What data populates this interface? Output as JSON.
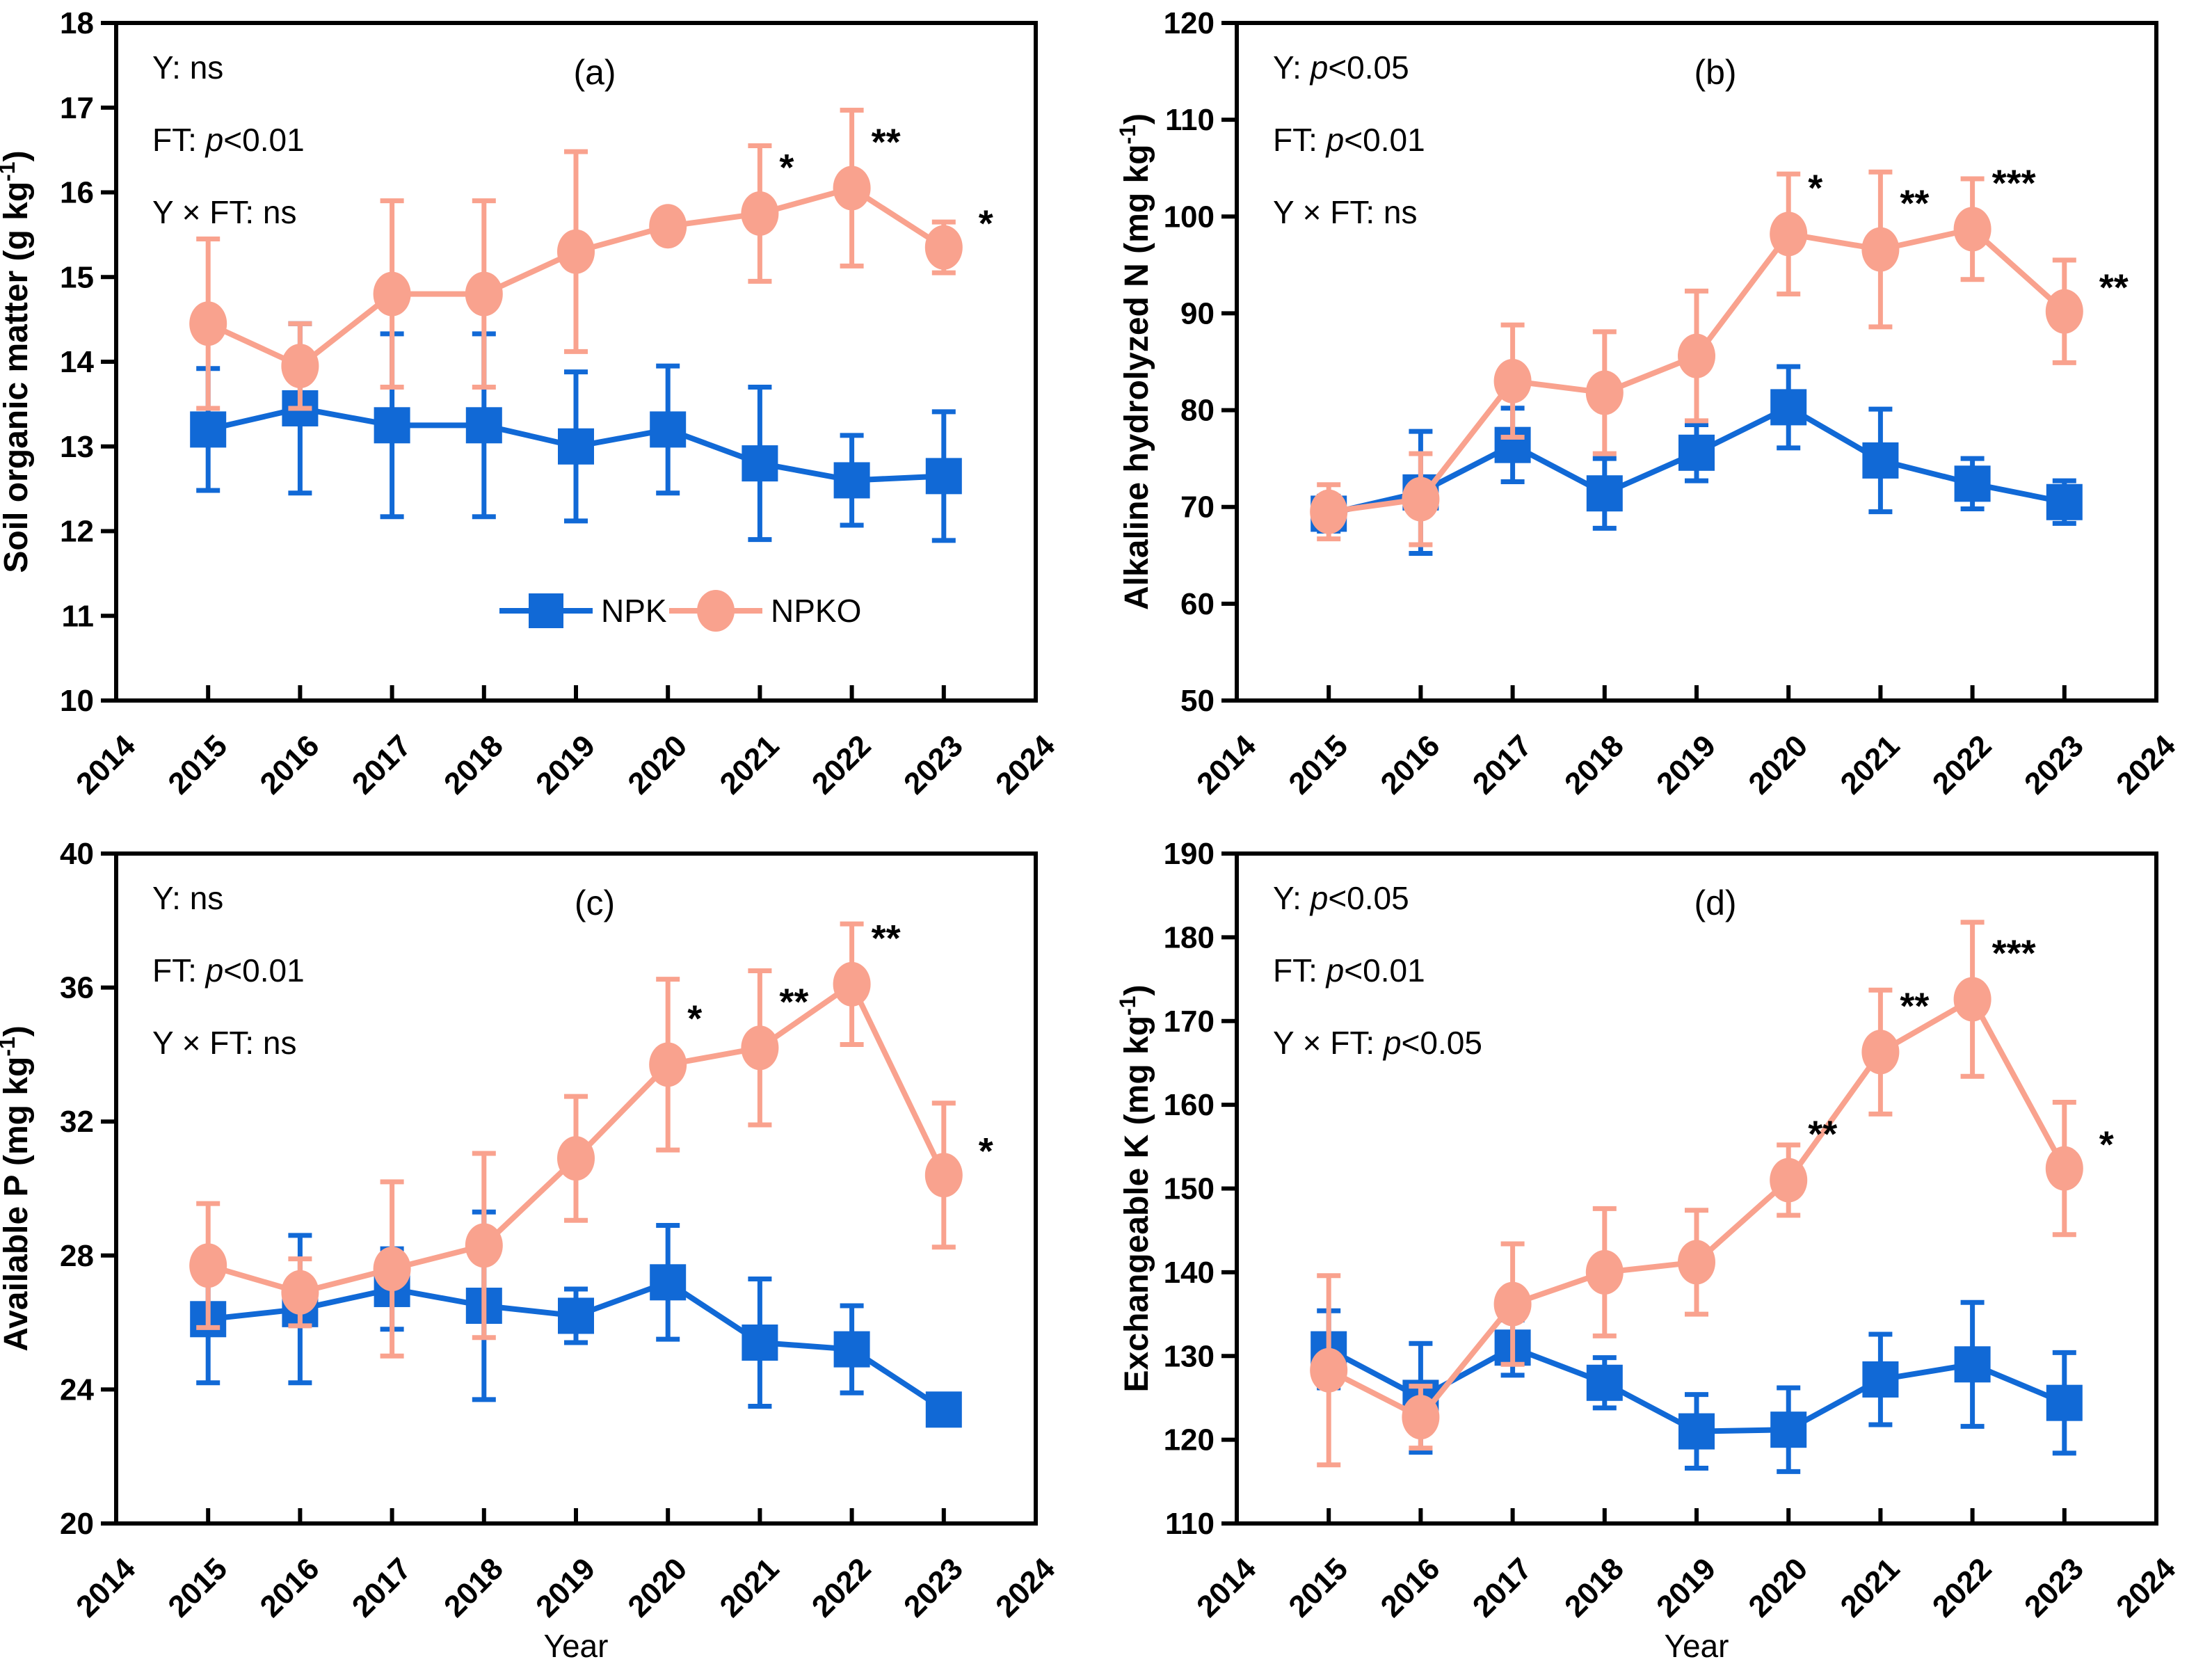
{
  "figure": {
    "xlabel": "Year",
    "xlim": [
      2014,
      2024
    ],
    "x_tick_labels": [
      "2014",
      "2015",
      "2016",
      "2017",
      "2018",
      "2019",
      "2020",
      "2021",
      "2022",
      "2023",
      "2024"
    ],
    "colors": {
      "npk": "#1169d6",
      "npko": "#f9a28e",
      "significance": "#f20000",
      "axis": "#000000",
      "background": "#ffffff"
    },
    "legend": {
      "items": [
        {
          "label": "NPK",
          "series": "npk",
          "marker": "square"
        },
        {
          "label": "NPKO",
          "series": "npko",
          "marker": "circle"
        }
      ]
    }
  },
  "chart_data": [
    {
      "id": "a",
      "type": "line",
      "panel_label": "(a)",
      "ylabel": "Soil organic matter (g kg⁻¹)",
      "ylim": [
        10,
        18
      ],
      "ytick_step": 1,
      "stats_annotations": [
        "Y: ns",
        "FT: p<0.01",
        "Y × FT: ns"
      ],
      "x": [
        2015,
        2016,
        2017,
        2018,
        2019,
        2020,
        2021,
        2022,
        2023
      ],
      "series": [
        {
          "name": "NPK",
          "values": [
            13.2,
            13.45,
            13.25,
            13.25,
            13.0,
            13.2,
            12.8,
            12.6,
            12.65
          ],
          "errors": [
            0.72,
            1.0,
            1.08,
            1.08,
            0.88,
            0.75,
            0.9,
            0.53,
            0.76
          ]
        },
        {
          "name": "NPKO",
          "values": [
            14.45,
            13.95,
            14.8,
            14.8,
            15.3,
            15.6,
            15.75,
            16.05,
            15.35
          ],
          "errors": [
            1.0,
            0.5,
            1.1,
            1.1,
            1.18,
            0.12,
            0.8,
            0.92,
            0.3
          ],
          "significance": [
            {
              "x": 2021,
              "label": "*"
            },
            {
              "x": 2022,
              "label": "**"
            },
            {
              "x": 2023,
              "label": "*"
            }
          ]
        }
      ]
    },
    {
      "id": "b",
      "type": "line",
      "panel_label": "(b)",
      "ylabel": "Alkaline hydrolyzed N (mg kg⁻¹)",
      "ylim": [
        50,
        120
      ],
      "ytick_step": 10,
      "stats_annotations": [
        "Y: p<0.05",
        "FT: p<0.01",
        "Y × FT: ns"
      ],
      "x": [
        2015,
        2016,
        2017,
        2018,
        2019,
        2020,
        2021,
        2022,
        2023
      ],
      "series": [
        {
          "name": "NPK",
          "values": [
            69.3,
            71.5,
            76.4,
            71.4,
            75.6,
            80.3,
            74.8,
            72.4,
            70.5
          ],
          "errors": [
            1.8,
            6.3,
            3.8,
            3.6,
            2.9,
            4.2,
            5.3,
            2.6,
            2.2
          ]
        },
        {
          "name": "NPKO",
          "values": [
            69.5,
            70.8,
            83.0,
            81.8,
            85.6,
            98.2,
            96.6,
            98.7,
            90.2
          ],
          "errors": [
            2.8,
            4.7,
            5.8,
            6.3,
            6.7,
            6.2,
            8.0,
            5.2,
            5.3
          ],
          "significance": [
            {
              "x": 2020,
              "label": "*"
            },
            {
              "x": 2021,
              "label": "**"
            },
            {
              "x": 2022,
              "label": "***"
            },
            {
              "x": 2023,
              "label": "**"
            }
          ]
        }
      ]
    },
    {
      "id": "c",
      "type": "line",
      "panel_label": "(c)",
      "ylabel": "Available P (mg kg⁻¹)",
      "ylim": [
        20,
        40
      ],
      "ytick_step": 4,
      "stats_annotations": [
        "Y: ns",
        "FT: p<0.01",
        "Y × FT: ns"
      ],
      "x": [
        2015,
        2016,
        2017,
        2018,
        2019,
        2020,
        2021,
        2022,
        2023
      ],
      "series": [
        {
          "name": "NPK",
          "values": [
            26.1,
            26.4,
            27.0,
            26.5,
            26.2,
            27.2,
            25.4,
            25.2,
            23.4
          ],
          "errors": [
            1.9,
            2.2,
            1.2,
            2.8,
            0.8,
            1.7,
            1.9,
            1.3,
            0.45
          ]
        },
        {
          "name": "NPKO",
          "values": [
            27.7,
            26.9,
            27.6,
            28.3,
            30.9,
            33.7,
            34.2,
            36.1,
            30.4
          ],
          "errors": [
            1.85,
            1.0,
            2.6,
            2.75,
            1.85,
            2.55,
            2.3,
            1.8,
            2.15
          ],
          "significance": [
            {
              "x": 2020,
              "label": "*"
            },
            {
              "x": 2021,
              "label": "**"
            },
            {
              "x": 2022,
              "label": "**"
            },
            {
              "x": 2023,
              "label": "*"
            }
          ]
        }
      ]
    },
    {
      "id": "d",
      "type": "line",
      "panel_label": "(d)",
      "ylabel": "Exchangeable K (mg kg⁻¹)",
      "ylim": [
        110,
        190
      ],
      "ytick_step": 10,
      "stats_annotations": [
        "Y: p<0.05",
        "FT: p<0.01",
        "Y × FT: p<0.05"
      ],
      "x": [
        2015,
        2016,
        2017,
        2018,
        2019,
        2020,
        2021,
        2022,
        2023
      ],
      "series": [
        {
          "name": "NPK",
          "values": [
            130.8,
            125.0,
            131.0,
            126.8,
            121.0,
            121.2,
            127.2,
            129.0,
            124.4
          ],
          "errors": [
            4.6,
            6.5,
            3.3,
            3.0,
            4.4,
            5.0,
            5.4,
            7.4,
            6.0
          ]
        },
        {
          "name": "NPKO",
          "values": [
            128.3,
            122.7,
            136.2,
            140.0,
            141.2,
            151.0,
            166.3,
            172.6,
            152.4
          ],
          "errors": [
            11.3,
            3.7,
            7.2,
            7.6,
            6.2,
            4.2,
            7.4,
            9.2,
            7.9
          ],
          "significance": [
            {
              "x": 2020,
              "label": "**"
            },
            {
              "x": 2021,
              "label": "**"
            },
            {
              "x": 2022,
              "label": "***"
            },
            {
              "x": 2023,
              "label": "*"
            }
          ]
        }
      ]
    }
  ]
}
